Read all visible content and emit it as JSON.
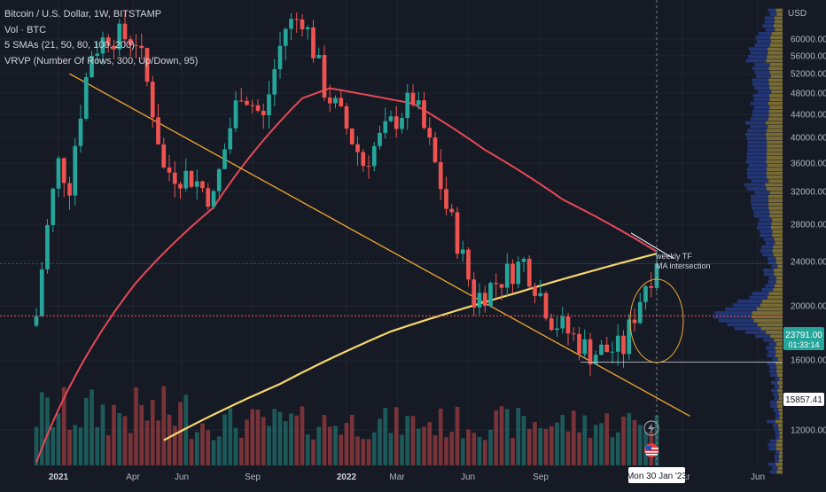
{
  "legend": {
    "title": "Bitcoin / U.S. Dollar, 1W, BITSTAMP",
    "volume": "Vol · BTC",
    "smas": "5 SMAs (21, 50, 80, 100, 200)",
    "vrvp": "VRVP (Number Of Rows, 300, Up/Down, 95)"
  },
  "price_axis": {
    "currency": "USD",
    "ticks": [
      "12000.00",
      "16000.00",
      "20000.00",
      "24000.00",
      "28000.00",
      "32000.00",
      "36000.00",
      "40000.00",
      "44000.00",
      "48000.00",
      "52000.00",
      "56000.00",
      "60000.00"
    ],
    "current_price": "23791.00",
    "countdown": "01:33:14",
    "marked_price": "15857.41"
  },
  "time_axis": {
    "labels": [
      "2021",
      "Apr",
      "Jun",
      "Sep",
      "2022",
      "Mar",
      "Jun",
      "Sep",
      "Mar",
      "Jun"
    ],
    "crosshair_label": "Mon 30 Jan '23"
  },
  "annotation": {
    "line1": "weekly TF",
    "line2": "MA intersection"
  },
  "colors": {
    "background": "#161a25",
    "up": "#26a69a",
    "down": "#ef5350",
    "sma_red": "#e84855",
    "sma_yellow": "#f5d76e",
    "trendline": "#f0a830",
    "profile_up": "#263c88",
    "profile_down": "#8a7a3a"
  },
  "chart_data": {
    "type": "candlestick",
    "symbol": "BTC/USD",
    "timeframe": "1W",
    "ylim": [
      10000,
      68000
    ],
    "y_scale": "log",
    "current_price": 23791.0,
    "support_level": 15857.41,
    "highlighted_level": 19200,
    "ohlc_points": [
      {
        "date": "2020-12-07",
        "close": 19200
      },
      {
        "date": "2021-01-04",
        "close": 36000
      },
      {
        "date": "2021-01-18",
        "close": 33000
      },
      {
        "date": "2021-02-15",
        "close": 57000
      },
      {
        "date": "2021-03-08",
        "close": 61000
      },
      {
        "date": "2021-04-12",
        "close": 60000
      },
      {
        "date": "2021-05-17",
        "close": 35000
      },
      {
        "date": "2021-06-21",
        "close": 34000
      },
      {
        "date": "2021-07-19",
        "close": 31000
      },
      {
        "date": "2021-08-23",
        "close": 49000
      },
      {
        "date": "2021-09-20",
        "close": 43000
      },
      {
        "date": "2021-10-18",
        "close": 63000
      },
      {
        "date": "2021-11-08",
        "close": 66000
      },
      {
        "date": "2021-12-06",
        "close": 49000
      },
      {
        "date": "2022-01-24",
        "close": 36000
      },
      {
        "date": "2022-03-28",
        "close": 47000
      },
      {
        "date": "2022-05-09",
        "close": 30000
      },
      {
        "date": "2022-06-13",
        "close": 20500
      },
      {
        "date": "2022-08-15",
        "close": 24000
      },
      {
        "date": "2022-09-19",
        "close": 19000
      },
      {
        "date": "2022-11-07",
        "close": 16500
      },
      {
        "date": "2022-12-19",
        "close": 16800
      },
      {
        "date": "2023-01-16",
        "close": 22000
      },
      {
        "date": "2023-01-30",
        "close": 23791
      }
    ],
    "sma_red": [
      {
        "date": "2020-12-07",
        "value": 10500
      },
      {
        "date": "2021-04-12",
        "value": 22000
      },
      {
        "date": "2021-07-19",
        "value": 30000
      },
      {
        "date": "2021-11-08",
        "value": 47000
      },
      {
        "date": "2021-12-13",
        "value": 49000
      },
      {
        "date": "2022-03-28",
        "value": 46000
      },
      {
        "date": "2022-06-27",
        "value": 38000
      },
      {
        "date": "2022-10-03",
        "value": 31000
      },
      {
        "date": "2023-01-30",
        "value": 25000
      }
    ],
    "sma_yellow": [
      {
        "date": "2021-05-17",
        "value": 11500
      },
      {
        "date": "2021-10-11",
        "value": 14500
      },
      {
        "date": "2022-02-28",
        "value": 18000
      },
      {
        "date": "2022-08-01",
        "value": 21000
      },
      {
        "date": "2023-01-30",
        "value": 24800
      }
    ],
    "trendline": [
      {
        "date": "2021-01-18",
        "value": 52000
      },
      {
        "date": "2023-03-13",
        "value": 12700
      }
    ]
  }
}
